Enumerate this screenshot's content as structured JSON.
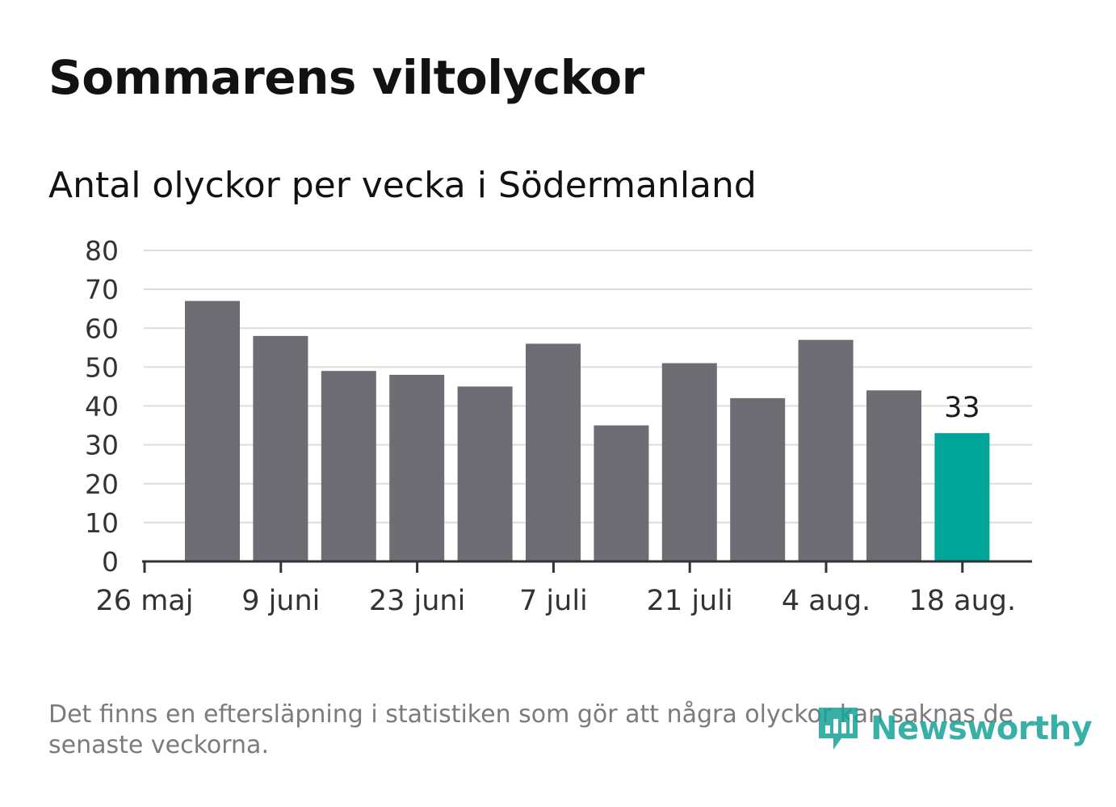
{
  "header": {
    "title": "Sommarens viltolyckor",
    "subtitle": "Antal olyckor per vecka i Södermanland"
  },
  "chart_data": {
    "type": "bar",
    "title": "Sommarens viltolyckor",
    "subtitle": "Antal olyckor per vecka i Södermanland",
    "xlabel": "",
    "ylabel": "",
    "ylim": [
      0,
      80
    ],
    "y_ticks": [
      "0",
      "10",
      "20",
      "30",
      "40",
      "50",
      "60",
      "70",
      "80"
    ],
    "x_tick_labels": [
      "26 maj",
      "9 juni",
      "23 juni",
      "7 juli",
      "21 juli",
      "4 aug.",
      "18 aug."
    ],
    "values": [
      67,
      58,
      49,
      48,
      45,
      56,
      35,
      51,
      42,
      57,
      44,
      33
    ],
    "highlight_index": 11,
    "highlight_label": "33",
    "grid": true,
    "legend": "none",
    "colors": {
      "bar": "#6e6d73",
      "highlight": "#00a499",
      "grid": "#dcdcdc",
      "axis": "#333333"
    }
  },
  "footer": {
    "note": "Det finns en eftersläpning i statistiken som gör att några olyckor kan saknas de senaste veckorna.",
    "brand": "Newsworthy",
    "brand_icon": "bar-chart-speech-bubble-icon",
    "brand_color": "#17a398"
  }
}
